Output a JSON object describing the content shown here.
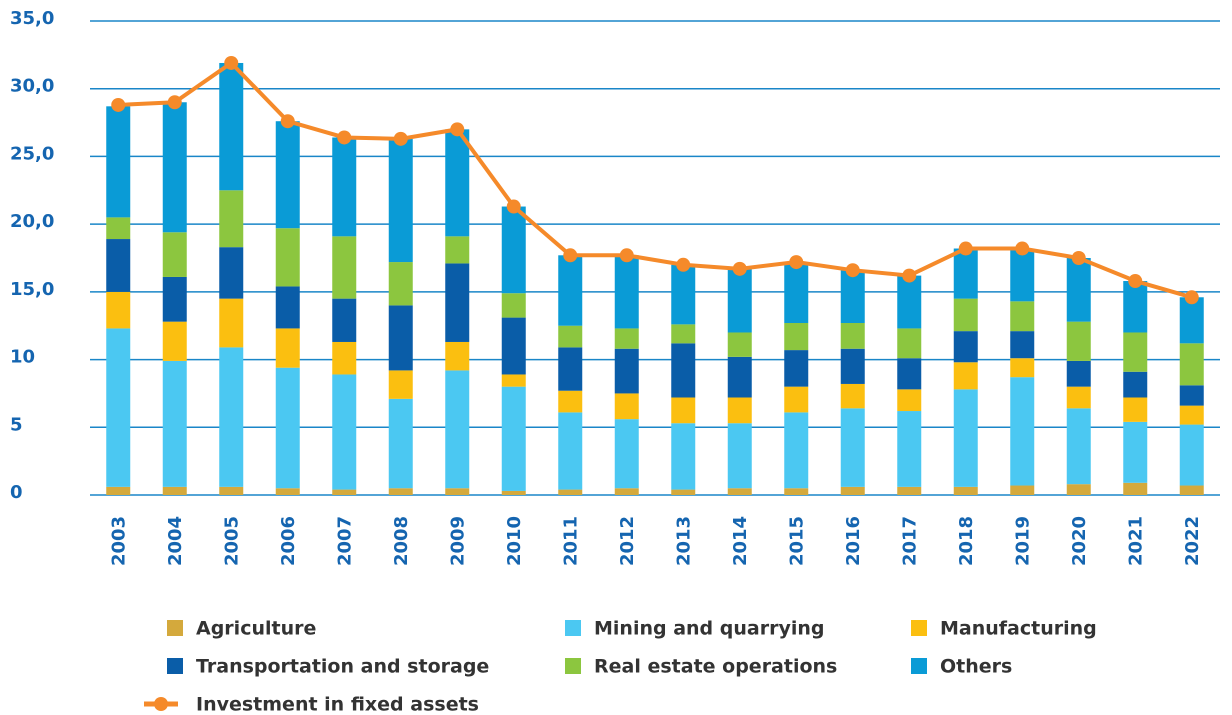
{
  "chart_data": {
    "type": "bar",
    "stacked": true,
    "legend": "bottom",
    "grid": true,
    "categories": [
      "2003",
      "2004",
      "2005",
      "2006",
      "2007",
      "2008",
      "2009",
      "2010",
      "2011",
      "2012",
      "2013",
      "2014",
      "2015",
      "2016",
      "2017",
      "2018",
      "2019",
      "2020",
      "2021",
      "2022"
    ],
    "ylim": [
      0,
      35
    ],
    "yticks": [
      0,
      5,
      10,
      {
        "value": 15,
        "label": "15,0"
      },
      {
        "value": 20,
        "label": "20,0"
      },
      {
        "value": 25,
        "label": "25,0"
      },
      {
        "value": 30,
        "label": "30,0"
      },
      {
        "value": 35,
        "label": "35,0"
      }
    ],
    "series": [
      {
        "name": "Agriculture",
        "color": "#d4a93c",
        "values": [
          0.6,
          0.6,
          0.6,
          0.5,
          0.4,
          0.5,
          0.5,
          0.3,
          0.4,
          0.5,
          0.4,
          0.5,
          0.5,
          0.6,
          0.6,
          0.6,
          0.7,
          0.8,
          0.9,
          0.7
        ]
      },
      {
        "name": "Mining and quarrying",
        "color": "#4bc8f2",
        "values": [
          11.7,
          9.3,
          10.3,
          8.9,
          8.5,
          6.6,
          8.7,
          7.7,
          5.7,
          5.1,
          4.9,
          4.8,
          5.6,
          5.8,
          5.6,
          7.2,
          8.0,
          5.6,
          4.5,
          4.5
        ]
      },
      {
        "name": "Manufacturing",
        "color": "#fbbf10",
        "values": [
          2.7,
          2.9,
          3.6,
          2.9,
          2.4,
          2.1,
          2.1,
          0.9,
          1.6,
          1.9,
          1.9,
          1.9,
          1.9,
          1.8,
          1.6,
          2.0,
          1.4,
          1.6,
          1.8,
          1.4
        ]
      },
      {
        "name": "Transportation and storage",
        "color": "#0a5da8",
        "values": [
          3.9,
          3.3,
          3.8,
          3.1,
          3.2,
          4.8,
          5.8,
          4.2,
          3.2,
          3.3,
          4.0,
          3.0,
          2.7,
          2.6,
          2.3,
          2.3,
          2.0,
          1.9,
          1.9,
          1.5
        ]
      },
      {
        "name": "Real estate operations",
        "color": "#8cc63f",
        "values": [
          1.6,
          3.3,
          4.2,
          4.3,
          4.6,
          3.2,
          2.0,
          1.8,
          1.6,
          1.5,
          1.4,
          1.8,
          2.0,
          1.9,
          2.2,
          2.4,
          2.2,
          2.9,
          2.9,
          3.1
        ]
      },
      {
        "name": "Others",
        "color": "#0a9bd6",
        "values": [
          8.2,
          9.6,
          9.4,
          7.9,
          7.3,
          9.1,
          7.9,
          6.4,
          5.2,
          5.4,
          4.4,
          4.7,
          4.5,
          3.9,
          3.9,
          3.7,
          3.9,
          4.7,
          3.8,
          3.4
        ]
      },
      {
        "name": "Investment in fixed assets",
        "type": "line",
        "color": "#f58a2a",
        "values": [
          28.8,
          29.0,
          31.9,
          27.6,
          26.4,
          26.3,
          27.0,
          21.3,
          17.7,
          17.7,
          17.0,
          16.7,
          17.2,
          16.6,
          16.2,
          18.2,
          18.2,
          17.5,
          15.8,
          14.6
        ]
      }
    ]
  }
}
